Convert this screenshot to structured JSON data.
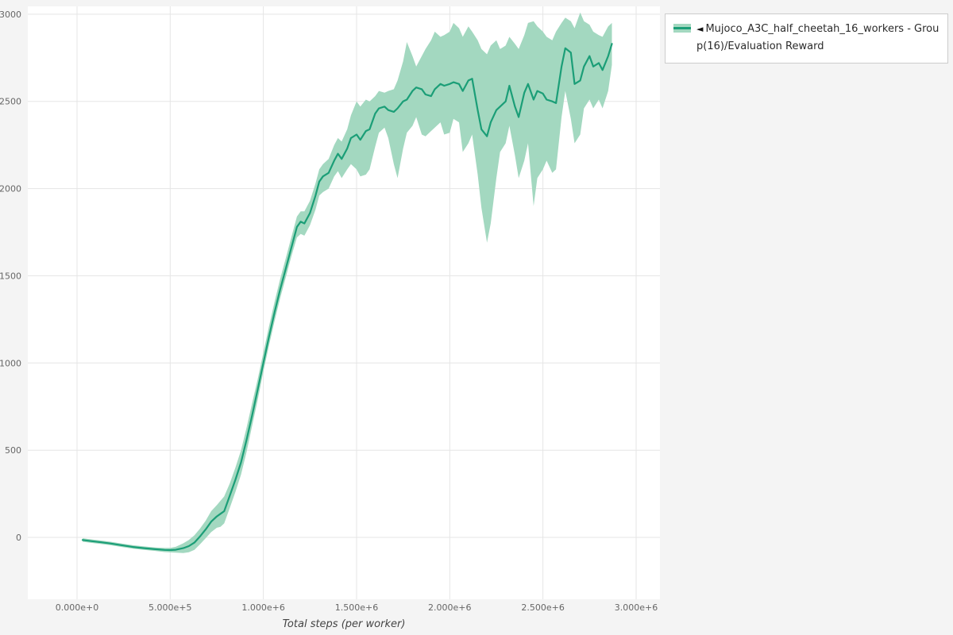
{
  "colors": {
    "background": "#f4f4f4",
    "panel": "#ffffff",
    "grid": "#e5e5e5",
    "tick_text": "#666666",
    "axis_title": "#444444"
  },
  "legend": {
    "toggle_icon": "◄",
    "label": "Mujoco_A3C_half_cheetah_16_workers - Group(16)/Evaluation Reward"
  },
  "chart_data": {
    "type": "line",
    "title": "",
    "xlabel": "Total steps (per worker)",
    "ylabel": "",
    "grid": true,
    "legend_position": "top-right",
    "x_tick_values": [
      0,
      500000,
      1000000,
      1500000,
      2000000,
      2500000,
      3000000
    ],
    "x_tick_labels": [
      "0.000e+0",
      "5.000e+5",
      "1.000e+6",
      "1.500e+6",
      "2.000e+6",
      "2.500e+6",
      "3.000e+6"
    ],
    "y_tick_values": [
      0,
      500,
      1000,
      1500,
      2000,
      2500,
      3000
    ],
    "y_tick_labels": [
      "0",
      "500",
      "1000",
      "1500",
      "2000",
      "2500",
      "3000"
    ],
    "xlim": [
      -264000,
      3128000
    ],
    "ylim": [
      -355,
      3045
    ],
    "point_format": [
      "x_steps",
      "lower",
      "mean",
      "upper"
    ],
    "series": [
      {
        "name": "Mujoco_A3C_half_cheetah_16_workers - Group(16)/Evaluation Reward",
        "line_color": "#1b9e77",
        "band_color": "#a3d8c0",
        "points": [
          [
            30000,
            -25,
            -15,
            -5
          ],
          [
            80000,
            -32,
            -22,
            -12
          ],
          [
            130000,
            -38,
            -28,
            -18
          ],
          [
            180000,
            -45,
            -35,
            -25
          ],
          [
            240000,
            -55,
            -45,
            -35
          ],
          [
            300000,
            -65,
            -55,
            -45
          ],
          [
            360000,
            -72,
            -62,
            -52
          ],
          [
            420000,
            -78,
            -68,
            -58
          ],
          [
            470000,
            -84,
            -72,
            -60
          ],
          [
            500000,
            -86,
            -73,
            -60
          ],
          [
            530000,
            -88,
            -71,
            -54
          ],
          [
            570000,
            -90,
            -62,
            -34
          ],
          [
            600000,
            -85,
            -50,
            -15
          ],
          [
            630000,
            -72,
            -30,
            12
          ],
          [
            660000,
            -40,
            5,
            50
          ],
          [
            690000,
            -5,
            45,
            95
          ],
          [
            720000,
            30,
            90,
            150
          ],
          [
            750000,
            55,
            120,
            185
          ],
          [
            770000,
            60,
            135,
            210
          ],
          [
            790000,
            80,
            150,
            235
          ],
          [
            820000,
            170,
            240,
            310
          ],
          [
            850000,
            260,
            330,
            400
          ],
          [
            880000,
            360,
            430,
            500
          ],
          [
            910000,
            490,
            560,
            630
          ],
          [
            940000,
            640,
            700,
            770
          ],
          [
            970000,
            790,
            850,
            910
          ],
          [
            1000000,
            950,
            1000,
            1060
          ],
          [
            1030000,
            1100,
            1150,
            1210
          ],
          [
            1060000,
            1240,
            1290,
            1350
          ],
          [
            1090000,
            1370,
            1420,
            1480
          ],
          [
            1120000,
            1490,
            1540,
            1600
          ],
          [
            1150000,
            1610,
            1660,
            1720
          ],
          [
            1180000,
            1720,
            1780,
            1840
          ],
          [
            1200000,
            1740,
            1810,
            1870
          ],
          [
            1220000,
            1730,
            1800,
            1870
          ],
          [
            1250000,
            1790,
            1860,
            1930
          ],
          [
            1280000,
            1880,
            1960,
            2030
          ],
          [
            1300000,
            1960,
            2040,
            2110
          ],
          [
            1320000,
            1980,
            2070,
            2140
          ],
          [
            1350000,
            2000,
            2090,
            2170
          ],
          [
            1380000,
            2070,
            2160,
            2250
          ],
          [
            1400000,
            2100,
            2200,
            2290
          ],
          [
            1420000,
            2060,
            2170,
            2270
          ],
          [
            1450000,
            2110,
            2230,
            2340
          ],
          [
            1470000,
            2140,
            2290,
            2420
          ],
          [
            1500000,
            2110,
            2310,
            2500
          ],
          [
            1520000,
            2070,
            2280,
            2470
          ],
          [
            1550000,
            2080,
            2330,
            2510
          ],
          [
            1570000,
            2110,
            2340,
            2500
          ],
          [
            1600000,
            2240,
            2430,
            2530
          ],
          [
            1620000,
            2320,
            2460,
            2560
          ],
          [
            1650000,
            2350,
            2470,
            2550
          ],
          [
            1670000,
            2290,
            2450,
            2560
          ],
          [
            1700000,
            2140,
            2440,
            2570
          ],
          [
            1720000,
            2060,
            2460,
            2620
          ],
          [
            1750000,
            2230,
            2500,
            2730
          ],
          [
            1770000,
            2320,
            2510,
            2840
          ],
          [
            1800000,
            2360,
            2560,
            2760
          ],
          [
            1820000,
            2410,
            2580,
            2700
          ],
          [
            1850000,
            2310,
            2570,
            2760
          ],
          [
            1870000,
            2300,
            2540,
            2800
          ],
          [
            1900000,
            2330,
            2530,
            2850
          ],
          [
            1920000,
            2350,
            2570,
            2900
          ],
          [
            1950000,
            2380,
            2600,
            2870
          ],
          [
            1970000,
            2310,
            2590,
            2880
          ],
          [
            2000000,
            2320,
            2600,
            2900
          ],
          [
            2020000,
            2400,
            2610,
            2950
          ],
          [
            2050000,
            2380,
            2600,
            2920
          ],
          [
            2070000,
            2210,
            2560,
            2870
          ],
          [
            2100000,
            2260,
            2620,
            2930
          ],
          [
            2120000,
            2310,
            2630,
            2900
          ],
          [
            2150000,
            2080,
            2450,
            2850
          ],
          [
            2170000,
            1890,
            2340,
            2800
          ],
          [
            2200000,
            1690,
            2300,
            2770
          ],
          [
            2220000,
            1800,
            2380,
            2820
          ],
          [
            2250000,
            2060,
            2450,
            2850
          ],
          [
            2270000,
            2210,
            2470,
            2800
          ],
          [
            2300000,
            2260,
            2500,
            2820
          ],
          [
            2320000,
            2360,
            2590,
            2870
          ],
          [
            2350000,
            2190,
            2470,
            2830
          ],
          [
            2370000,
            2060,
            2410,
            2800
          ],
          [
            2400000,
            2160,
            2550,
            2880
          ],
          [
            2420000,
            2260,
            2600,
            2950
          ],
          [
            2450000,
            1900,
            2510,
            2960
          ],
          [
            2470000,
            2060,
            2560,
            2930
          ],
          [
            2500000,
            2110,
            2545,
            2900
          ],
          [
            2520000,
            2160,
            2510,
            2870
          ],
          [
            2550000,
            2090,
            2500,
            2850
          ],
          [
            2570000,
            2110,
            2490,
            2900
          ],
          [
            2600000,
            2410,
            2700,
            2950
          ],
          [
            2620000,
            2560,
            2805,
            2980
          ],
          [
            2650000,
            2400,
            2780,
            2960
          ],
          [
            2670000,
            2260,
            2600,
            2920
          ],
          [
            2700000,
            2310,
            2620,
            3010
          ],
          [
            2720000,
            2460,
            2700,
            2960
          ],
          [
            2750000,
            2510,
            2760,
            2940
          ],
          [
            2770000,
            2460,
            2700,
            2900
          ],
          [
            2800000,
            2510,
            2720,
            2880
          ],
          [
            2820000,
            2460,
            2680,
            2870
          ],
          [
            2850000,
            2560,
            2760,
            2930
          ],
          [
            2870000,
            2710,
            2830,
            2950
          ]
        ]
      }
    ]
  }
}
